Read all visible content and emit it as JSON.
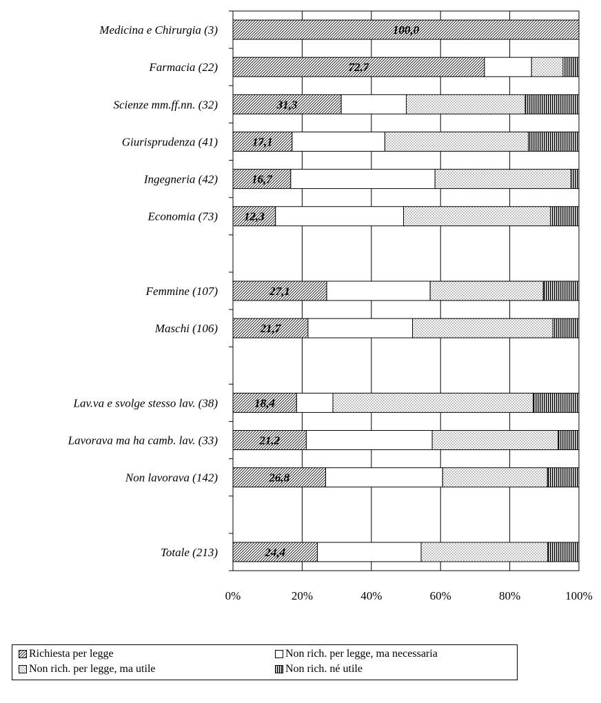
{
  "chart_data": {
    "type": "bar",
    "orientation": "horizontal",
    "stacked": true,
    "percent": true,
    "categories": [
      "Medicina e Chirurgia (3)",
      "Farmacia (22)",
      "Scienze mm.ff.nn. (32)",
      "Giurisprudenza (41)",
      "Ingegneria (42)",
      "Economia (73)",
      "",
      "Femmine (107)",
      "Maschi (106)",
      "",
      "Lav.va e svolge stesso lav. (38)",
      "Lavorava ma ha camb. lav. (33)",
      "Non lavorava (142)",
      "",
      "Totale (213)"
    ],
    "series": [
      {
        "name": "Richiesta per legge",
        "pattern": "diagonal",
        "values": [
          100.0,
          72.7,
          31.3,
          17.1,
          16.7,
          12.3,
          null,
          27.1,
          21.7,
          null,
          18.4,
          21.2,
          26.8,
          null,
          24.4
        ]
      },
      {
        "name": "Non rich. per legge, ma necessaria",
        "pattern": "blank",
        "values": [
          0,
          13.6,
          18.8,
          26.8,
          41.7,
          37.0,
          null,
          29.9,
          30.2,
          null,
          10.5,
          36.4,
          33.8,
          null,
          30.0
        ]
      },
      {
        "name": "Non rich. per legge, ma utile",
        "pattern": "dots",
        "values": [
          0,
          9.1,
          34.4,
          41.5,
          39.3,
          42.5,
          null,
          32.7,
          40.6,
          null,
          57.9,
          36.4,
          30.3,
          null,
          36.6
        ]
      },
      {
        "name": "Non rich. né utile",
        "pattern": "vertical",
        "values": [
          0,
          4.6,
          15.5,
          14.6,
          2.3,
          8.2,
          null,
          10.3,
          7.5,
          null,
          13.2,
          6.0,
          9.1,
          null,
          9.0
        ]
      }
    ],
    "data_labels": [
      "100,0",
      "72,7",
      "31,3",
      "17,1",
      "16,7",
      "12,3",
      "",
      "27,1",
      "21,7",
      "",
      "18,4",
      "21,2",
      "26,8",
      "",
      "24,4"
    ],
    "xlim": [
      0,
      100
    ],
    "xticks": [
      "0%",
      "20%",
      "40%",
      "60%",
      "80%",
      "100%"
    ],
    "grid": true,
    "legend_position": "bottom"
  },
  "legend": {
    "items": [
      {
        "label": "Richiesta per legge",
        "pattern": "diagonal"
      },
      {
        "label": "Non rich. per legge, ma necessaria",
        "pattern": "blank"
      },
      {
        "label": "Non rich. per legge, ma utile",
        "pattern": "dots"
      },
      {
        "label": "Non rich. né utile",
        "pattern": "vertical"
      }
    ]
  }
}
